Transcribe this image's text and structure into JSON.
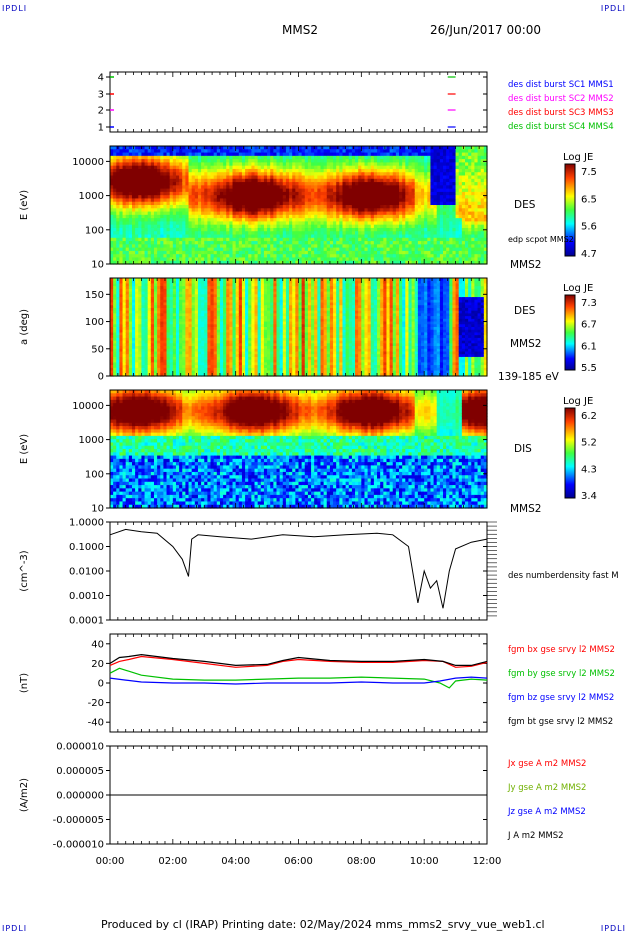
{
  "header": {
    "corner_label": "IPDLI",
    "spacecraft": "MMS2",
    "datetime": "26/Jun/2017 00:00"
  },
  "footer": {
    "text": "Produced by cl (IRAP)   Printing date: 02/May/2024   mms_mms2_srvy_vue_web1.cl"
  },
  "chart_data": [
    {
      "type": "line",
      "panel": "availability",
      "yticks": [
        "1",
        "2",
        "3",
        "4"
      ],
      "series": [
        {
          "name": "des dist burst SC1 MMS1",
          "color": "#0000ff",
          "y": 1,
          "x": [
            10.75,
            11.0
          ]
        },
        {
          "name": "des dist burst SC2 MMS2",
          "color": "#ff00ff",
          "y": 2,
          "x": [
            10.75,
            11.0
          ]
        },
        {
          "name": "des dist burst SC3 MMS3",
          "color": "#ff0000",
          "y": 3,
          "x": [
            10.75,
            11.0
          ]
        },
        {
          "name": "des dist burst SC4 MMS4",
          "color": "#00c000",
          "y": 4,
          "x": [
            10.75,
            11.0
          ]
        }
      ]
    },
    {
      "type": "heatmap",
      "panel": "des-energy",
      "ylabel": "E (eV)",
      "yticks": [
        "10",
        "100",
        "1000",
        "10000"
      ],
      "right_labels": [
        "DES",
        "edp scpot MMS2",
        "MMS2"
      ],
      "colorbar": {
        "title": "Log JE",
        "ticks": [
          "7.5",
          "6.5",
          "5.6",
          "4.7"
        ]
      }
    },
    {
      "type": "heatmap",
      "panel": "des-pitch",
      "ylabel": "a (deg)",
      "yticks": [
        "0",
        "50",
        "100",
        "150"
      ],
      "right_labels": [
        "DES",
        "MMS2",
        "139-185 eV"
      ],
      "colorbar": {
        "title": "Log JE",
        "ticks": [
          "7.3",
          "6.7",
          "6.1",
          "5.5"
        ]
      }
    },
    {
      "type": "heatmap",
      "panel": "dis-energy",
      "ylabel": "E (eV)",
      "yticks": [
        "10",
        "100",
        "1000",
        "10000"
      ],
      "right_labels": [
        "DIS",
        "MMS2"
      ],
      "colorbar": {
        "title": "Log JE",
        "ticks": [
          "6.2",
          "5.2",
          "4.3",
          "3.4"
        ]
      }
    },
    {
      "type": "line",
      "panel": "density",
      "ylabel": "(cm^-3)",
      "yticks": [
        "0.0001",
        "0.0010",
        "0.0100",
        "0.1000",
        "1.0000"
      ],
      "series": [
        {
          "name": "des numberdensity fast M",
          "color": "#000000",
          "x": [
            0,
            0.5,
            1.0,
            1.5,
            2.0,
            2.3,
            2.5,
            2.6,
            2.8,
            3.5,
            4.5,
            5.5,
            6.5,
            7.5,
            8.5,
            9.0,
            9.5,
            9.8,
            10.0,
            10.2,
            10.4,
            10.6,
            10.8,
            11.0,
            11.5,
            12.0
          ],
          "y": [
            0.3,
            0.5,
            0.4,
            0.35,
            0.1,
            0.03,
            0.006,
            0.2,
            0.3,
            0.25,
            0.2,
            0.3,
            0.25,
            0.3,
            0.35,
            0.3,
            0.1,
            0.0005,
            0.01,
            0.002,
            0.004,
            0.0003,
            0.01,
            0.08,
            0.15,
            0.2
          ]
        }
      ]
    },
    {
      "type": "line",
      "panel": "magnetic-field",
      "ylabel": "(nT)",
      "yticks": [
        "-40",
        "-20",
        "0",
        "20",
        "40"
      ],
      "ylim": [
        -50,
        50
      ],
      "series": [
        {
          "name": "fgm bx gse srvy l2 MMS2",
          "color": "#ff0000",
          "x": [
            0,
            0.3,
            0.6,
            1.0,
            2.0,
            3.0,
            4.0,
            5.0,
            5.5,
            6.0,
            7.0,
            8.0,
            9.0,
            10.0,
            10.6,
            11.0,
            11.5,
            12.0
          ],
          "y": [
            18,
            22,
            24,
            27,
            24,
            20,
            16,
            18,
            22,
            24,
            22,
            21,
            21,
            23,
            22,
            16,
            17,
            21
          ]
        },
        {
          "name": "fgm by gse srvy l2 MMS2",
          "color": "#00c000",
          "x": [
            0,
            0.3,
            0.6,
            1.0,
            2.0,
            3.0,
            4.0,
            5.0,
            6.0,
            7.0,
            8.0,
            9.0,
            10.0,
            10.5,
            10.8,
            11.0,
            11.5,
            12.0
          ],
          "y": [
            10,
            15,
            12,
            8,
            4,
            3,
            3,
            4,
            5,
            5,
            6,
            5,
            4,
            0,
            -5,
            2,
            4,
            3
          ]
        },
        {
          "name": "fgm bz gse srvy l2 MMS2",
          "color": "#0000ff",
          "x": [
            0,
            0.5,
            1.0,
            2.0,
            3.0,
            4.0,
            5.0,
            6.0,
            7.0,
            8.0,
            9.0,
            10.0,
            10.5,
            11.0,
            11.5,
            12.0
          ],
          "y": [
            5,
            3,
            1,
            0,
            0,
            -1,
            0,
            0,
            0,
            1,
            0,
            0,
            2,
            5,
            6,
            5
          ]
        },
        {
          "name": "fgm bt gse srvy l2 MMS2",
          "color": "#000000",
          "x": [
            0,
            0.3,
            0.6,
            1.0,
            2.0,
            3.0,
            4.0,
            5.0,
            5.5,
            6.0,
            7.0,
            8.0,
            9.0,
            10.0,
            10.6,
            11.0,
            11.5,
            12.0
          ],
          "y": [
            20,
            26,
            27,
            29,
            25,
            22,
            18,
            19,
            23,
            26,
            23,
            22,
            22,
            24,
            22,
            18,
            18,
            22
          ]
        }
      ]
    },
    {
      "type": "line",
      "panel": "current-density",
      "ylabel": "(A/m2)",
      "yticks": [
        "-0.000010",
        "-0.000005",
        "0.000000",
        "0.000005",
        "0.000010"
      ],
      "ylim": [
        -1e-05,
        1e-05
      ],
      "xticks": [
        "00:00",
        "02:00",
        "04:00",
        "06:00",
        "08:00",
        "10:00",
        "12:00"
      ],
      "series": [
        {
          "name": "Jx gse A m2 MMS2",
          "color": "#ff0000",
          "x": [
            0,
            12
          ],
          "y": [
            0,
            0
          ]
        },
        {
          "name": "Jy gse A m2 MMS2",
          "color": "#70b000",
          "x": [
            0,
            12
          ],
          "y": [
            0,
            0
          ]
        },
        {
          "name": "Jz gse A m2 MMS2",
          "color": "#0000ff",
          "x": [
            0,
            12
          ],
          "y": [
            0,
            0
          ]
        },
        {
          "name": "J A m2 MMS2",
          "color": "#000000",
          "x": [
            0,
            12
          ],
          "y": [
            0,
            0
          ]
        }
      ]
    }
  ]
}
